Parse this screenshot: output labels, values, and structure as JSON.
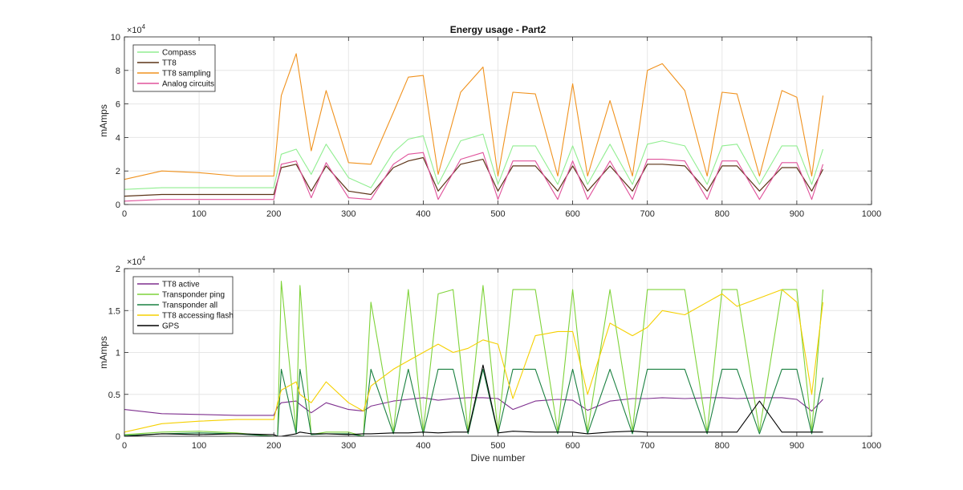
{
  "chart_data": [
    {
      "type": "line",
      "title": "Energy usage - Part2",
      "xlabel": "",
      "ylabel": "mAmps",
      "exponent_label": "×10",
      "exponent_power": "4",
      "xlim": [
        0,
        1000
      ],
      "ylim": [
        0,
        100000
      ],
      "xticks": [
        0,
        100,
        200,
        300,
        400,
        500,
        600,
        700,
        800,
        900,
        1000
      ],
      "yticks": [
        0,
        20000,
        40000,
        60000,
        80000,
        100000
      ],
      "ytick_labels": [
        "0",
        "2",
        "4",
        "6",
        "8",
        "10"
      ],
      "xtick_labels": [
        "0",
        "100",
        "200",
        "300",
        "400",
        "500",
        "600",
        "700",
        "800",
        "900",
        "1000"
      ],
      "grid": true,
      "legend_position": "top-left",
      "x": [
        0,
        50,
        100,
        150,
        200,
        210,
        230,
        250,
        270,
        300,
        330,
        360,
        380,
        400,
        420,
        450,
        480,
        500,
        520,
        550,
        580,
        600,
        620,
        650,
        680,
        700,
        720,
        750,
        780,
        800,
        820,
        850,
        880,
        900,
        920,
        935
      ],
      "series": [
        {
          "name": "Compass",
          "color": "#90ee90",
          "values": [
            9000,
            10000,
            10000,
            10000,
            10000,
            30000,
            33000,
            18000,
            36000,
            16000,
            10000,
            31000,
            39000,
            41000,
            12000,
            38000,
            42000,
            12000,
            35000,
            35000,
            12000,
            35000,
            12000,
            36000,
            12000,
            36000,
            38000,
            35000,
            12000,
            35000,
            36000,
            12000,
            35000,
            35000,
            12000,
            33000
          ]
        },
        {
          "name": "TT8",
          "color": "#5c3317",
          "values": [
            5000,
            6000,
            6000,
            6000,
            6000,
            22000,
            24000,
            8000,
            23000,
            8000,
            6000,
            22000,
            26000,
            28000,
            8000,
            24000,
            27000,
            8000,
            23000,
            23000,
            8000,
            23000,
            8000,
            23000,
            8000,
            24000,
            24000,
            23000,
            8000,
            23000,
            23000,
            8000,
            22000,
            22000,
            8000,
            21000
          ]
        },
        {
          "name": "TT8 sampling",
          "color": "#f0921e",
          "values": [
            15000,
            20000,
            19000,
            17000,
            17000,
            65000,
            90000,
            32000,
            68000,
            25000,
            24000,
            55000,
            76000,
            77000,
            18000,
            67000,
            82000,
            17000,
            67000,
            66000,
            17000,
            72000,
            17000,
            62000,
            17000,
            80000,
            84000,
            68000,
            17000,
            67000,
            66000,
            17000,
            68000,
            64000,
            17000,
            65000
          ]
        },
        {
          "name": "Analog circuits",
          "color": "#e0529b",
          "values": [
            2000,
            3000,
            3000,
            3000,
            3000,
            24000,
            26000,
            4000,
            25000,
            4000,
            3000,
            24000,
            30000,
            31000,
            3000,
            27000,
            31000,
            3000,
            26000,
            26000,
            3000,
            26000,
            3000,
            26000,
            3000,
            27000,
            27000,
            26000,
            3000,
            26000,
            26000,
            3000,
            25000,
            25000,
            3000,
            24000
          ]
        }
      ]
    },
    {
      "type": "line",
      "title": "",
      "xlabel": "Dive number",
      "ylabel": "mAmps",
      "exponent_label": "×10",
      "exponent_power": "4",
      "xlim": [
        0,
        1000
      ],
      "ylim": [
        0,
        20000
      ],
      "xticks": [
        0,
        100,
        200,
        300,
        400,
        500,
        600,
        700,
        800,
        900,
        1000
      ],
      "yticks": [
        0,
        5000,
        10000,
        15000,
        20000
      ],
      "ytick_labels": [
        "0",
        "0.5",
        "1",
        "1.5",
        "2"
      ],
      "xtick_labels": [
        "0",
        "100",
        "200",
        "300",
        "400",
        "500",
        "600",
        "700",
        "800",
        "900",
        "1000"
      ],
      "grid": true,
      "legend_position": "top-left",
      "x": [
        0,
        50,
        100,
        150,
        200,
        205,
        210,
        230,
        235,
        250,
        270,
        300,
        320,
        330,
        360,
        380,
        400,
        420,
        440,
        460,
        480,
        500,
        520,
        550,
        580,
        600,
        620,
        650,
        680,
        700,
        720,
        750,
        780,
        800,
        820,
        850,
        880,
        900,
        920,
        935
      ],
      "series": [
        {
          "name": "TT8 active",
          "color": "#7e2f8e",
          "values": [
            3200,
            2700,
            2600,
            2500,
            2500,
            3500,
            4000,
            4200,
            3800,
            2800,
            4000,
            3200,
            3000,
            3600,
            4200,
            4400,
            4600,
            4300,
            4500,
            4600,
            4600,
            4500,
            3200,
            4200,
            4400,
            4300,
            3100,
            4200,
            4500,
            4500,
            4600,
            4500,
            4600,
            4600,
            4500,
            4600,
            4600,
            4400,
            3000,
            4400
          ]
        },
        {
          "name": "Transponder ping",
          "color": "#7fd33a",
          "values": [
            200,
            500,
            600,
            400,
            0,
            0,
            18500,
            500,
            18000,
            200,
            500,
            500,
            0,
            16000,
            500,
            17500,
            600,
            17000,
            17500,
            500,
            18000,
            500,
            17500,
            17500,
            600,
            17500,
            600,
            17500,
            600,
            17500,
            17500,
            17500,
            500,
            17500,
            17500,
            600,
            17500,
            17500,
            600,
            17500
          ]
        },
        {
          "name": "Transponder all",
          "color": "#1a8040",
          "values": [
            100,
            300,
            400,
            300,
            0,
            0,
            8000,
            300,
            8000,
            200,
            300,
            300,
            0,
            8000,
            300,
            8000,
            300,
            8000,
            8000,
            300,
            8000,
            300,
            8000,
            8000,
            300,
            8000,
            300,
            8000,
            300,
            8000,
            8000,
            8000,
            300,
            8000,
            8000,
            300,
            8000,
            8000,
            300,
            7000
          ]
        },
        {
          "name": "TT8 accessing flash",
          "color": "#f5d000",
          "values": [
            500,
            1500,
            1800,
            2000,
            2000,
            4000,
            5500,
            6500,
            5000,
            4000,
            6500,
            4000,
            3000,
            6000,
            8000,
            9000,
            10000,
            11000,
            10000,
            10500,
            11500,
            11000,
            4500,
            12000,
            12500,
            12500,
            5000,
            13500,
            12000,
            13000,
            15000,
            14500,
            16000,
            17000,
            15500,
            16500,
            17500,
            16000,
            5000,
            16000
          ]
        },
        {
          "name": "GPS",
          "color": "#000000",
          "values": [
            0,
            300,
            200,
            300,
            200,
            0,
            0,
            300,
            500,
            300,
            300,
            200,
            300,
            300,
            400,
            400,
            500,
            400,
            500,
            500,
            8500,
            400,
            600,
            500,
            500,
            500,
            300,
            500,
            600,
            500,
            500,
            500,
            500,
            500,
            500,
            4200,
            500,
            500,
            500,
            500
          ]
        }
      ]
    }
  ]
}
